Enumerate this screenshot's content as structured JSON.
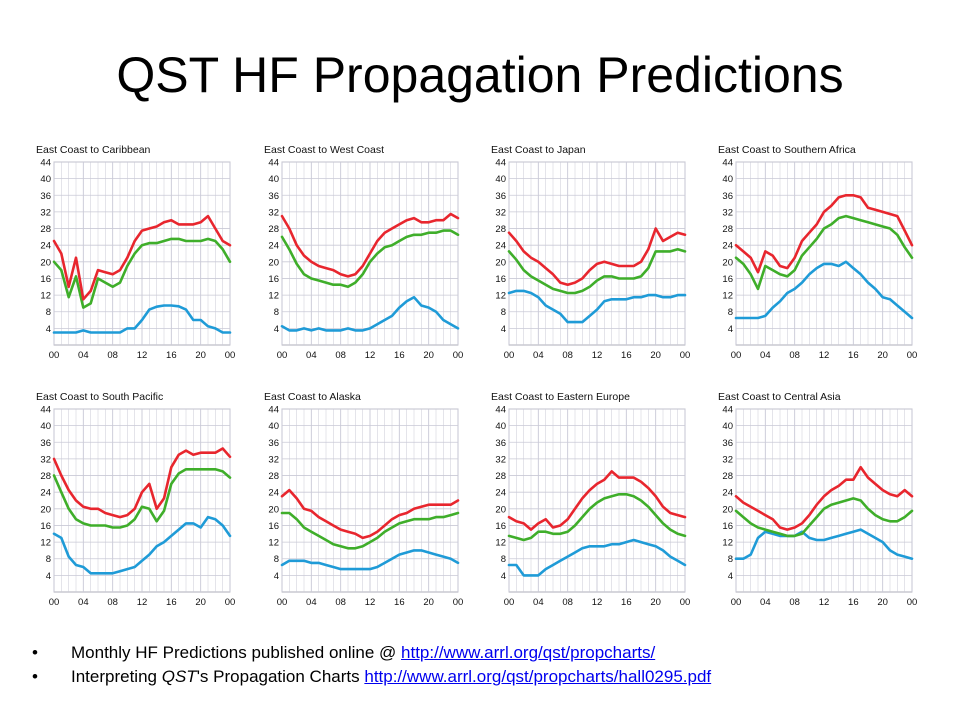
{
  "slide": {
    "title": "QST HF Propagation Predictions"
  },
  "bullets": [
    {
      "text": "Monthly HF Predictions published online @ ",
      "link": "http://www.arrl.org/qst/propcharts/"
    },
    {
      "text_prefix": "Interpreting ",
      "text_italic": "QST",
      "text_suffix": "'s Propagation Charts ",
      "link": "http://www.arrl.org/qst/propcharts/hall0295.pdf"
    }
  ],
  "colors": {
    "red": "#e8262e",
    "green": "#3fae2a",
    "blue": "#1f9bd7",
    "grid": "#c9c9d6",
    "axis": "#9a9aa8"
  },
  "chart_data": [
    {
      "type": "line",
      "title": "East Coast to Caribbean",
      "x": [
        "00",
        "01",
        "02",
        "03",
        "04",
        "05",
        "06",
        "07",
        "08",
        "09",
        "10",
        "11",
        "12",
        "13",
        "14",
        "15",
        "16",
        "17",
        "18",
        "19",
        "20",
        "21",
        "22",
        "23",
        "24"
      ],
      "xticks": [
        "00",
        "04",
        "08",
        "12",
        "16",
        "20",
        "00"
      ],
      "ylim": [
        0,
        44
      ],
      "yticks": [
        4,
        8,
        12,
        16,
        20,
        24,
        28,
        32,
        36,
        40,
        44
      ],
      "series": [
        {
          "color": "red",
          "values": [
            25,
            22,
            14,
            21,
            11,
            13,
            18,
            17.5,
            17,
            18,
            21,
            25,
            27.5,
            28,
            28.5,
            29.5,
            30,
            29,
            29,
            29,
            29.5,
            31,
            28,
            25,
            24
          ]
        },
        {
          "color": "green",
          "values": [
            20,
            18,
            11.5,
            16.5,
            9,
            10,
            16,
            15,
            14,
            15,
            19,
            22,
            24,
            24.5,
            24.5,
            25,
            25.5,
            25.5,
            25,
            25,
            25,
            25.5,
            25,
            23,
            20
          ]
        },
        {
          "color": "blue",
          "values": [
            3,
            3,
            3,
            3,
            3.5,
            3,
            3,
            3,
            3,
            3,
            4,
            4,
            6,
            8.5,
            9.2,
            9.5,
            9.5,
            9.3,
            8.5,
            6,
            6,
            4.5,
            4,
            3,
            3
          ]
        }
      ]
    },
    {
      "type": "line",
      "title": "East Coast to West Coast",
      "x": [
        "00",
        "01",
        "02",
        "03",
        "04",
        "05",
        "06",
        "07",
        "08",
        "09",
        "10",
        "11",
        "12",
        "13",
        "14",
        "15",
        "16",
        "17",
        "18",
        "19",
        "20",
        "21",
        "22",
        "23",
        "24"
      ],
      "xticks": [
        "00",
        "04",
        "08",
        "12",
        "16",
        "20",
        "00"
      ],
      "ylim": [
        0,
        44
      ],
      "yticks": [
        4,
        8,
        12,
        16,
        20,
        24,
        28,
        32,
        36,
        40,
        44
      ],
      "series": [
        {
          "color": "red",
          "values": [
            31,
            28,
            24,
            21.5,
            20,
            19,
            18.5,
            18,
            17,
            16.5,
            17,
            19,
            22,
            25,
            27,
            28,
            29,
            30,
            30.5,
            29.5,
            29.5,
            30,
            30,
            31.5,
            30.5
          ]
        },
        {
          "color": "green",
          "values": [
            26,
            23,
            19.5,
            17,
            16,
            15.5,
            15,
            14.5,
            14.5,
            14,
            15,
            17,
            20,
            22,
            23.5,
            24,
            25,
            26,
            26.5,
            26.5,
            27,
            27,
            27.5,
            27.5,
            26.5
          ]
        },
        {
          "color": "blue",
          "values": [
            4.5,
            3.5,
            3.5,
            4,
            3.5,
            4,
            3.5,
            3.5,
            3.5,
            4,
            3.5,
            3.5,
            4,
            5,
            6,
            7,
            9,
            10.5,
            11.5,
            9.5,
            9,
            8,
            6,
            5,
            4
          ]
        }
      ]
    },
    {
      "type": "line",
      "title": "East Coast to Japan",
      "x": [
        "00",
        "01",
        "02",
        "03",
        "04",
        "05",
        "06",
        "07",
        "08",
        "09",
        "10",
        "11",
        "12",
        "13",
        "14",
        "15",
        "16",
        "17",
        "18",
        "19",
        "20",
        "21",
        "22",
        "23",
        "24"
      ],
      "xticks": [
        "00",
        "04",
        "08",
        "12",
        "16",
        "20",
        "00"
      ],
      "ylim": [
        0,
        44
      ],
      "yticks": [
        4,
        8,
        12,
        16,
        20,
        24,
        28,
        32,
        36,
        40,
        44
      ],
      "series": [
        {
          "color": "red",
          "values": [
            27,
            25,
            22.5,
            21,
            20,
            18.5,
            17,
            15,
            14.5,
            15,
            16,
            18,
            19.5,
            20,
            19.5,
            19,
            19,
            19,
            20,
            23,
            28,
            25,
            26,
            27,
            26.5
          ]
        },
        {
          "color": "green",
          "values": [
            22.5,
            20.5,
            18,
            16.5,
            15.5,
            14.5,
            13.5,
            13,
            12.5,
            12.5,
            13,
            14,
            15.5,
            16.5,
            16.5,
            16,
            16,
            16,
            16.5,
            18.5,
            22.5,
            22.5,
            22.5,
            23,
            22.5
          ]
        },
        {
          "color": "blue",
          "values": [
            12.5,
            13,
            13,
            12.5,
            11.5,
            9.5,
            8.5,
            7.5,
            5.5,
            5.5,
            5.5,
            7,
            8.5,
            10.5,
            11,
            11,
            11,
            11.5,
            11.5,
            12,
            12,
            11.5,
            11.5,
            12,
            12
          ]
        }
      ]
    },
    {
      "type": "line",
      "title": "East Coast to Southern Africa",
      "x": [
        "00",
        "01",
        "02",
        "03",
        "04",
        "05",
        "06",
        "07",
        "08",
        "09",
        "10",
        "11",
        "12",
        "13",
        "14",
        "15",
        "16",
        "17",
        "18",
        "19",
        "20",
        "21",
        "22",
        "23",
        "24"
      ],
      "xticks": [
        "00",
        "04",
        "08",
        "12",
        "16",
        "20",
        "00"
      ],
      "ylim": [
        0,
        44
      ],
      "yticks": [
        4,
        8,
        12,
        16,
        20,
        24,
        28,
        32,
        36,
        40,
        44
      ],
      "series": [
        {
          "color": "red",
          "values": [
            24,
            22.5,
            21,
            17.5,
            22.5,
            21.5,
            19,
            18.5,
            21,
            25,
            27,
            29,
            32,
            33.5,
            35.5,
            36,
            36,
            35.5,
            33,
            32.5,
            32,
            31.5,
            31,
            27.5,
            24
          ]
        },
        {
          "color": "green",
          "values": [
            21,
            19.5,
            17,
            13.5,
            19,
            18,
            17,
            16.5,
            18,
            21.5,
            23.5,
            25.5,
            28,
            29,
            30.5,
            31,
            30.5,
            30,
            29.5,
            29,
            28.5,
            28,
            26.5,
            23.5,
            21
          ]
        },
        {
          "color": "blue",
          "values": [
            6.5,
            6.5,
            6.5,
            6.5,
            7,
            9,
            10.5,
            12.5,
            13.5,
            15,
            17,
            18.5,
            19.5,
            19.5,
            19,
            20,
            18.5,
            17,
            15,
            13.5,
            11.5,
            11,
            9.5,
            8,
            6.5
          ]
        }
      ]
    },
    {
      "type": "line",
      "title": "East Coast to South Pacific",
      "x": [
        "00",
        "01",
        "02",
        "03",
        "04",
        "05",
        "06",
        "07",
        "08",
        "09",
        "10",
        "11",
        "12",
        "13",
        "14",
        "15",
        "16",
        "17",
        "18",
        "19",
        "20",
        "21",
        "22",
        "23",
        "24"
      ],
      "xticks": [
        "00",
        "04",
        "08",
        "12",
        "16",
        "20",
        "00"
      ],
      "ylim": [
        0,
        44
      ],
      "yticks": [
        4,
        8,
        12,
        16,
        20,
        24,
        28,
        32,
        36,
        40,
        44
      ],
      "series": [
        {
          "color": "red",
          "values": [
            32,
            28,
            24.5,
            22,
            20.5,
            20,
            20,
            19,
            18.5,
            18,
            18.5,
            20,
            24,
            26,
            20,
            22.5,
            30,
            33,
            34,
            33,
            33.5,
            33.5,
            33.5,
            34.5,
            32.5
          ]
        },
        {
          "color": "green",
          "values": [
            28,
            24,
            20,
            17.5,
            16.5,
            16,
            16,
            16,
            15.5,
            15.5,
            16,
            17.5,
            20.5,
            20,
            17,
            19.5,
            26,
            28.5,
            29.5,
            29.5,
            29.5,
            29.5,
            29.5,
            29,
            27.5
          ]
        },
        {
          "color": "blue",
          "values": [
            14,
            13,
            8.5,
            6.5,
            6,
            4.5,
            4.5,
            4.5,
            4.5,
            5,
            5.5,
            6,
            7.5,
            9,
            11,
            12,
            13.5,
            15,
            16.5,
            16.5,
            15.5,
            18,
            17.5,
            16,
            13.5
          ]
        }
      ]
    },
    {
      "type": "line",
      "title": "East Coast to Alaska",
      "x": [
        "00",
        "01",
        "02",
        "03",
        "04",
        "05",
        "06",
        "07",
        "08",
        "09",
        "10",
        "11",
        "12",
        "13",
        "14",
        "15",
        "16",
        "17",
        "18",
        "19",
        "20",
        "21",
        "22",
        "23",
        "24"
      ],
      "xticks": [
        "00",
        "04",
        "08",
        "12",
        "16",
        "20",
        "00"
      ],
      "ylim": [
        0,
        44
      ],
      "yticks": [
        4,
        8,
        12,
        16,
        20,
        24,
        28,
        32,
        36,
        40,
        44
      ],
      "series": [
        {
          "color": "red",
          "values": [
            23,
            24.5,
            22.5,
            20,
            19.5,
            18,
            17,
            16,
            15,
            14.5,
            14,
            13,
            13.5,
            14.5,
            16,
            17.5,
            18.5,
            19,
            20,
            20.5,
            21,
            21,
            21,
            21,
            22
          ]
        },
        {
          "color": "green",
          "values": [
            19,
            19,
            17.5,
            15.5,
            14.5,
            13.5,
            12.5,
            11.5,
            11,
            10.5,
            10.5,
            11,
            12,
            13,
            14.5,
            15.5,
            16.5,
            17,
            17.5,
            17.5,
            17.5,
            18,
            18,
            18.5,
            19
          ]
        },
        {
          "color": "blue",
          "values": [
            6.5,
            7.5,
            7.5,
            7.5,
            7,
            7,
            6.5,
            6,
            5.5,
            5.5,
            5.5,
            5.5,
            5.5,
            6,
            7,
            8,
            9,
            9.5,
            10,
            10,
            9.5,
            9,
            8.5,
            8,
            7
          ]
        }
      ]
    },
    {
      "type": "line",
      "title": "East Coast to Eastern Europe",
      "x": [
        "00",
        "01",
        "02",
        "03",
        "04",
        "05",
        "06",
        "07",
        "08",
        "09",
        "10",
        "11",
        "12",
        "13",
        "14",
        "15",
        "16",
        "17",
        "18",
        "19",
        "20",
        "21",
        "22",
        "23",
        "24"
      ],
      "xticks": [
        "00",
        "04",
        "08",
        "12",
        "16",
        "20",
        "00"
      ],
      "ylim": [
        0,
        44
      ],
      "yticks": [
        4,
        8,
        12,
        16,
        20,
        24,
        28,
        32,
        36,
        40,
        44
      ],
      "series": [
        {
          "color": "red",
          "values": [
            18,
            17,
            16.5,
            15,
            16.5,
            17.5,
            15.5,
            16,
            17.5,
            20,
            22.5,
            24.5,
            26,
            27,
            29,
            27.5,
            27.5,
            27.5,
            26.5,
            25,
            23,
            20.5,
            19,
            18.5,
            18
          ]
        },
        {
          "color": "green",
          "values": [
            13.5,
            13,
            12.5,
            13,
            14.5,
            14.5,
            14,
            14,
            14.5,
            16,
            18,
            20,
            21.5,
            22.5,
            23,
            23.5,
            23.5,
            23,
            22,
            20.5,
            18.5,
            16.5,
            15,
            14,
            13.5
          ]
        },
        {
          "color": "blue",
          "values": [
            6.5,
            6.5,
            4,
            4,
            4,
            5.5,
            6.5,
            7.5,
            8.5,
            9.5,
            10.5,
            11,
            11,
            11,
            11.5,
            11.5,
            12,
            12.5,
            12,
            11.5,
            11,
            10,
            8.5,
            7.5,
            6.5
          ]
        }
      ]
    },
    {
      "type": "line",
      "title": "East Coast to Central Asia",
      "x": [
        "00",
        "01",
        "02",
        "03",
        "04",
        "05",
        "06",
        "07",
        "08",
        "09",
        "10",
        "11",
        "12",
        "13",
        "14",
        "15",
        "16",
        "17",
        "18",
        "19",
        "20",
        "21",
        "22",
        "23",
        "24"
      ],
      "xticks": [
        "00",
        "04",
        "08",
        "12",
        "16",
        "20",
        "00"
      ],
      "ylim": [
        0,
        44
      ],
      "yticks": [
        4,
        8,
        12,
        16,
        20,
        24,
        28,
        32,
        36,
        40,
        44
      ],
      "series": [
        {
          "color": "red",
          "values": [
            23,
            21.5,
            20.5,
            19.5,
            18.5,
            17.5,
            15.5,
            15,
            15.5,
            16.5,
            18.5,
            21,
            23,
            24.5,
            25.5,
            27,
            27,
            30,
            27.5,
            26,
            24.5,
            23.5,
            23,
            24.5,
            23
          ]
        },
        {
          "color": "green",
          "values": [
            19.5,
            18,
            16.5,
            15.5,
            15,
            14.5,
            14,
            13.5,
            13.5,
            14,
            16,
            18,
            20,
            21,
            21.5,
            22,
            22.5,
            22,
            20,
            18.5,
            17.5,
            17,
            17,
            18,
            19.5
          ]
        },
        {
          "color": "blue",
          "values": [
            8,
            8,
            9,
            13,
            14.5,
            14,
            13.5,
            13.5,
            13.5,
            14.5,
            13,
            12.5,
            12.5,
            13,
            13.5,
            14,
            14.5,
            15,
            14,
            13,
            12,
            10,
            9,
            8.5,
            8
          ]
        }
      ]
    }
  ]
}
